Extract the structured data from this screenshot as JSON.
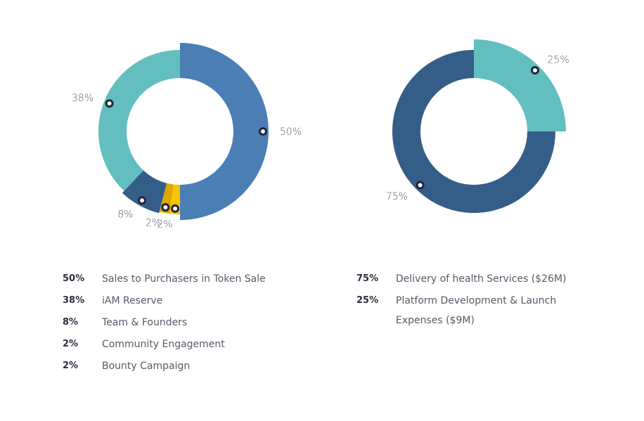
{
  "chart_data": [
    {
      "type": "pie",
      "variant": "donut-variable-radius",
      "title": "",
      "slices": [
        {
          "label": "Sales to Purchasers in Token Sale",
          "value": 50,
          "data_label": "50%",
          "color": "#4a7eb5"
        },
        {
          "label": "Bounty Campaign",
          "value": 2,
          "data_label": "2%",
          "color": "#f6c500"
        },
        {
          "label": "Community Engagement",
          "value": 2,
          "data_label": "2%",
          "color": "#e2a600"
        },
        {
          "label": "Team & Founders",
          "value": 8,
          "data_label": "8%",
          "color": "#345e88"
        },
        {
          "label": "iAM Reserve",
          "value": 38,
          "data_label": "38%",
          "color": "#63bfbf"
        }
      ],
      "legend": [
        {
          "pct": "50%",
          "label": "Sales to Purchasers in Token Sale"
        },
        {
          "pct": "38%",
          "label": "iAM Reserve"
        },
        {
          "pct": "8%",
          "label": "Team & Founders"
        },
        {
          "pct": "2%",
          "label": "Community Engagement"
        },
        {
          "pct": "2%",
          "label": "Bounty Campaign"
        }
      ],
      "legend_placement": "bottom"
    },
    {
      "type": "pie",
      "variant": "donut-variable-radius",
      "title": "",
      "slices": [
        {
          "label": "Platform Development & Launch Expenses ($9M)",
          "value": 25,
          "data_label": "25%",
          "color": "#63bfbf"
        },
        {
          "label": "Delivery of health Services ($26M)",
          "value": 75,
          "data_label": "75%",
          "color": "#345e88"
        }
      ],
      "legend": [
        {
          "pct": "75%",
          "label": "Delivery of health Services ($26M)"
        },
        {
          "pct": "25%",
          "label": "Platform Development & Launch Expenses ($9M)"
        }
      ],
      "legend_placement": "bottom"
    }
  ],
  "marker_color": "#22243a"
}
